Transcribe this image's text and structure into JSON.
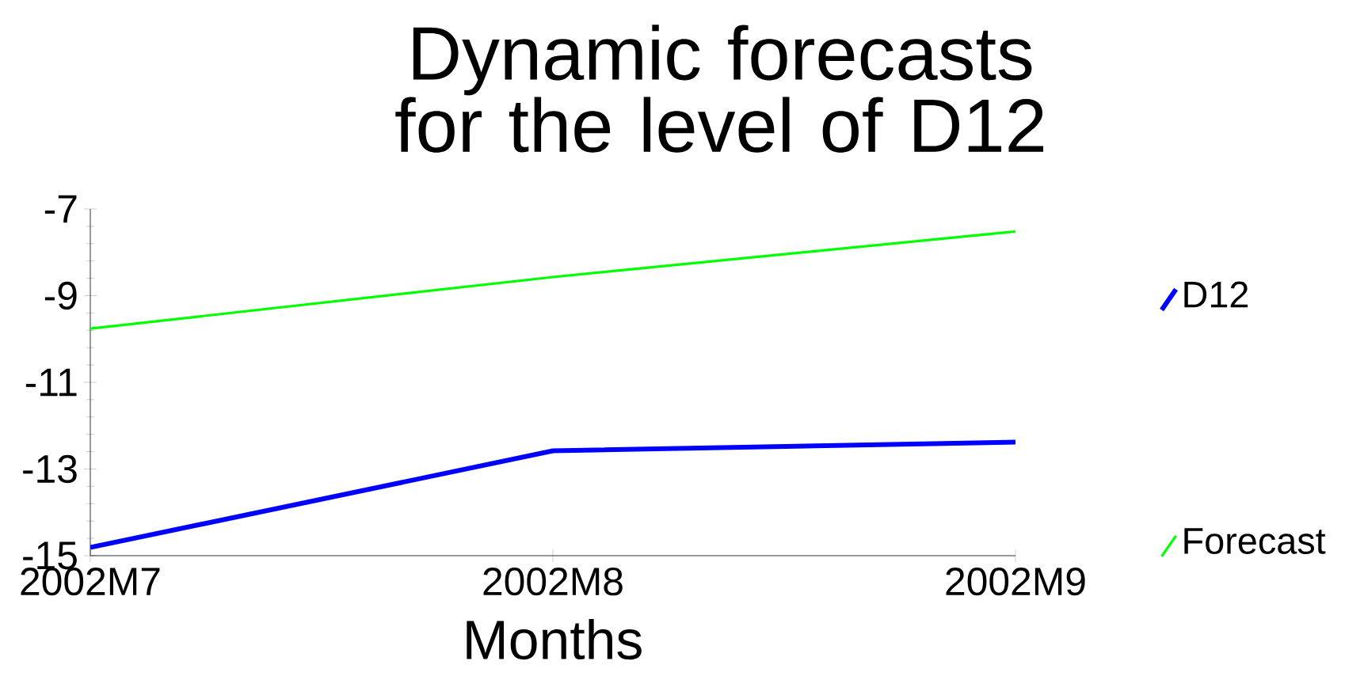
{
  "chart_data": {
    "type": "line",
    "title": "Dynamic forecasts for the level of D12",
    "xlabel": "Months",
    "categories": [
      "2002M7",
      "2002M8",
      "2002M9"
    ],
    "series": [
      {
        "name": "D12",
        "color": "#0000ff",
        "values": [
          -14.81,
          -12.58,
          -12.38
        ]
      },
      {
        "name": "Forecast",
        "color": "#00ff00",
        "values": [
          -9.76,
          -8.57,
          -7.52
        ]
      }
    ],
    "ylim": [
      -15,
      -7
    ],
    "yticks": [
      -15,
      -13,
      -11,
      -9,
      -7
    ],
    "grid": false,
    "legend": "right"
  }
}
